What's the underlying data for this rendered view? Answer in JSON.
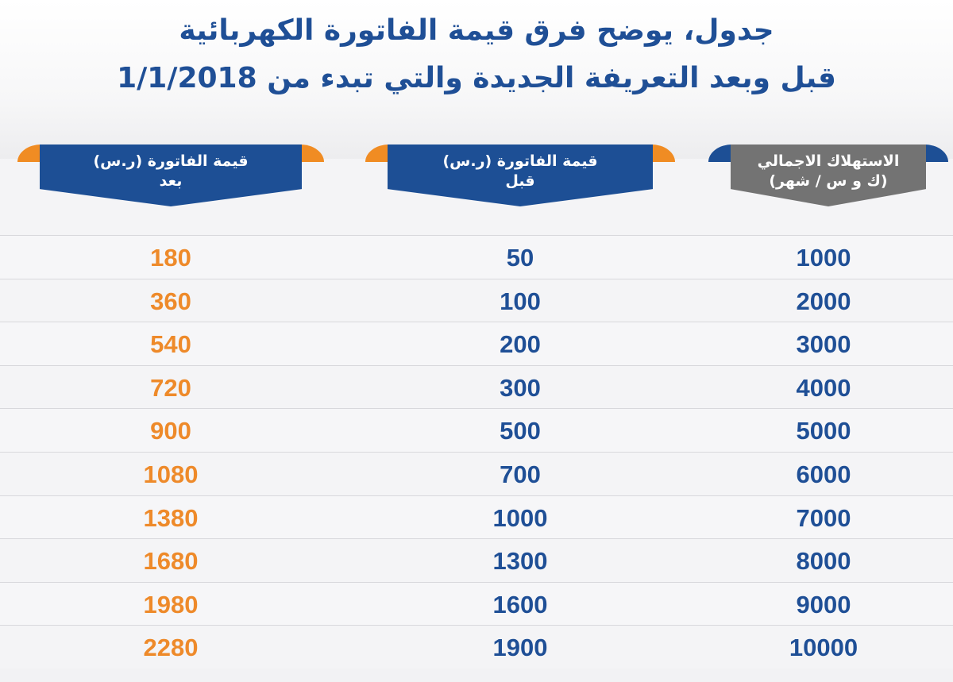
{
  "title": {
    "line1": "جدول، يوضح فرق قيمة الفاتورة الكهربائية",
    "line2": "قبل وبعد التعريفة الجديدة والتي تبدء من  1/1/2018"
  },
  "headers": {
    "consumption": {
      "line1": "الاستهلاك الاجمالي",
      "line2": "(ك و س / شهر)"
    },
    "before": {
      "line1": "قيمة الفاتورة (ر.س)",
      "line2": "قبل"
    },
    "after": {
      "line1": "قيمة الفاتورة (ر.س)",
      "line2": "بعد"
    }
  },
  "colors": {
    "blue": "#1d4f95",
    "orange": "#f08c23",
    "gray": "#737373"
  },
  "rows": [
    {
      "consumption": "1000",
      "before": "50",
      "after": "180"
    },
    {
      "consumption": "2000",
      "before": "100",
      "after": "360"
    },
    {
      "consumption": "3000",
      "before": "200",
      "after": "540"
    },
    {
      "consumption": "4000",
      "before": "300",
      "after": "720"
    },
    {
      "consumption": "5000",
      "before": "500",
      "after": "900"
    },
    {
      "consumption": "6000",
      "before": "700",
      "after": "1080"
    },
    {
      "consumption": "7000",
      "before": "1000",
      "after": "1380"
    },
    {
      "consumption": "8000",
      "before": "1300",
      "after": "1680"
    },
    {
      "consumption": "9000",
      "before": "1600",
      "after": "1980"
    },
    {
      "consumption": "10000",
      "before": "1900",
      "after": "2280"
    }
  ]
}
